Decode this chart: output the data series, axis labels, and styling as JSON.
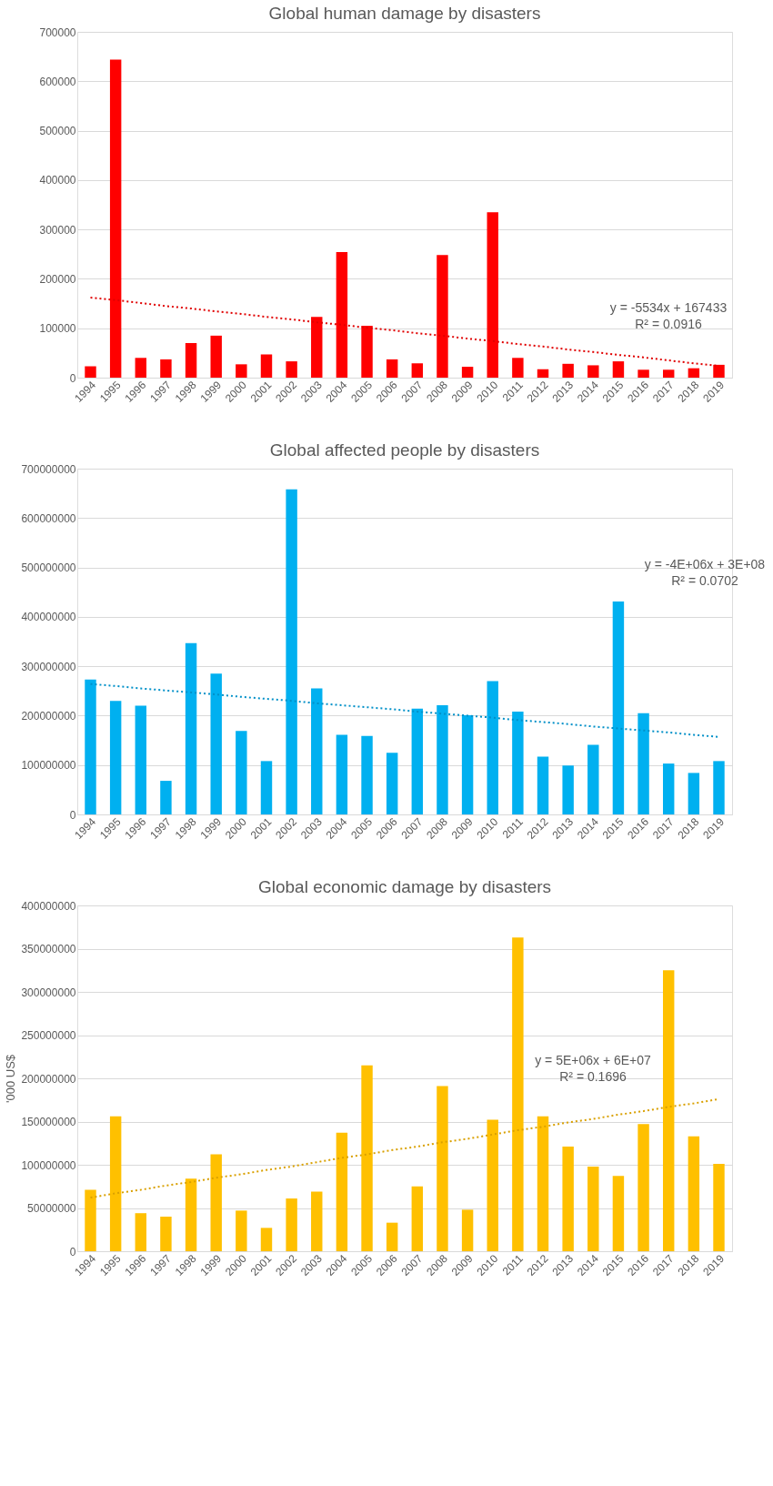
{
  "chart_data": [
    {
      "type": "bar",
      "title": "Global human damage by disasters",
      "categories": [
        "1994",
        "1995",
        "1996",
        "1997",
        "1998",
        "1999",
        "2000",
        "2001",
        "2002",
        "2003",
        "2004",
        "2005",
        "2006",
        "2007",
        "2008",
        "2009",
        "2010",
        "2011",
        "2012",
        "2013",
        "2014",
        "2015",
        "2016",
        "2017",
        "2018",
        "2019"
      ],
      "series": [
        {
          "color": "#ff0000",
          "values": [
            23000,
            644000,
            40000,
            37000,
            70000,
            85000,
            27000,
            47000,
            33000,
            123000,
            254000,
            105000,
            37000,
            29000,
            248000,
            22000,
            335000,
            40000,
            17000,
            28000,
            25000,
            33000,
            16000,
            16000,
            19000,
            26000
          ]
        },
        {
          "type": "line",
          "color": "#e00000",
          "line_style": "dotted",
          "values": [
            162000,
            157000,
            151000,
            145000,
            140000,
            134000,
            129000,
            123000,
            118000,
            112000,
            107000,
            101000,
            96000,
            90000,
            85000,
            79000,
            74000,
            68000,
            63000,
            57000,
            52000,
            46000,
            41000,
            35000,
            29000,
            24000
          ]
        }
      ],
      "ylim": [
        0,
        700000
      ],
      "yticks": [
        0,
        100000,
        200000,
        300000,
        400000,
        500000,
        600000,
        700000
      ],
      "grid": "y",
      "legend": false,
      "annotations": [
        "y = -5534x + 167433",
        "R² = 0.0916"
      ]
    },
    {
      "type": "bar",
      "title": "Global affected people by disasters",
      "categories": [
        "1994",
        "1995",
        "1996",
        "1997",
        "1998",
        "1999",
        "2000",
        "2001",
        "2002",
        "2003",
        "2004",
        "2005",
        "2006",
        "2007",
        "2008",
        "2009",
        "2010",
        "2011",
        "2012",
        "2013",
        "2014",
        "2015",
        "2016",
        "2017",
        "2018",
        "2019"
      ],
      "series": [
        {
          "color": "#00b0f0",
          "values": [
            273000000,
            230000000,
            220000000,
            68000000,
            347000000,
            285000000,
            169000000,
            108000000,
            658000000,
            255000000,
            161000000,
            159000000,
            125000000,
            214000000,
            221000000,
            201000000,
            270000000,
            208000000,
            117000000,
            99000000,
            141000000,
            431000000,
            205000000,
            103000000,
            84000000,
            108000000
          ]
        },
        {
          "type": "line",
          "color": "#0090c8",
          "line_style": "dotted",
          "values": [
            264000000,
            260000000,
            255000000,
            251000000,
            247000000,
            243000000,
            238000000,
            234000000,
            230000000,
            225000000,
            221000000,
            217000000,
            213000000,
            208000000,
            204000000,
            200000000,
            196000000,
            191000000,
            187000000,
            183000000,
            178000000,
            174000000,
            170000000,
            166000000,
            161000000,
            157000000
          ]
        }
      ],
      "ylim": [
        0,
        700000000
      ],
      "yticks": [
        0,
        100000000,
        200000000,
        300000000,
        400000000,
        500000000,
        600000000,
        700000000
      ],
      "grid": "y",
      "legend": false,
      "annotations": [
        "y = -4E+06x + 3E+08",
        "R² = 0.0702"
      ]
    },
    {
      "type": "bar",
      "title": "Global economic damage by disasters",
      "ylabel": "'000 US$",
      "categories": [
        "1994",
        "1995",
        "1996",
        "1997",
        "1998",
        "1999",
        "2000",
        "2001",
        "2002",
        "2003",
        "2004",
        "2005",
        "2006",
        "2007",
        "2008",
        "2009",
        "2010",
        "2011",
        "2012",
        "2013",
        "2014",
        "2015",
        "2016",
        "2017",
        "2018",
        "2019"
      ],
      "series": [
        {
          "color": "#ffc000",
          "values": [
            71000000,
            156000000,
            44000000,
            40000000,
            84000000,
            112000000,
            47000000,
            27000000,
            61000000,
            69000000,
            137000000,
            215000000,
            33000000,
            75000000,
            191000000,
            48000000,
            152000000,
            363000000,
            156000000,
            121000000,
            98000000,
            87000000,
            147000000,
            325000000,
            133000000,
            101000000
          ]
        },
        {
          "type": "line",
          "color": "#d9a000",
          "line_style": "dotted",
          "values": [
            62000000,
            67000000,
            71000000,
            76000000,
            80000000,
            85000000,
            89000000,
            94000000,
            98000000,
            103000000,
            108000000,
            112000000,
            117000000,
            121000000,
            126000000,
            130000000,
            135000000,
            140000000,
            144000000,
            149000000,
            153000000,
            158000000,
            162000000,
            167000000,
            171000000,
            176000000
          ]
        }
      ],
      "ylim": [
        0,
        400000000
      ],
      "yticks": [
        0,
        50000000,
        100000000,
        150000000,
        200000000,
        250000000,
        300000000,
        350000000,
        400000000
      ],
      "grid": "y",
      "legend": false,
      "annotations": [
        "y = 5E+06x + 6E+07",
        "R² = 0.1696"
      ]
    }
  ]
}
